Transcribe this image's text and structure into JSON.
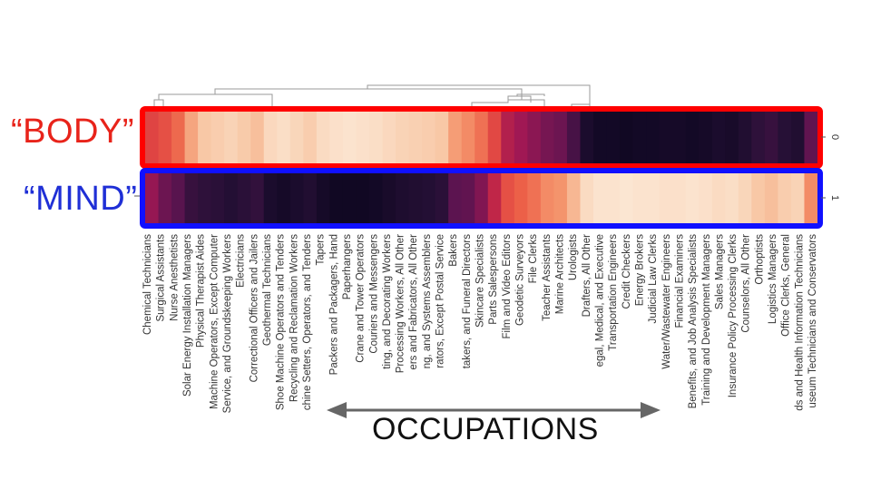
{
  "labels": {
    "body": "“BODY”",
    "mind": "“MIND”",
    "xaxis": "OCCUPATIONS"
  },
  "colors": {
    "body_box": "#ff0000",
    "mind_box": "#1010ff",
    "arrow": "#666666"
  },
  "chart_data": {
    "type": "heatmap",
    "colormap": "rocket (0 = dark purple-black, 1 = light cream)",
    "row_labels": [
      "0",
      "1"
    ],
    "row_names": [
      "“BODY”",
      "“MIND”"
    ],
    "x_tick_labels": [
      "Chemical Technicians",
      "Surgical Assistants",
      "Nurse Anesthetists",
      "Solar Energy Installation Managers",
      "Physical Therapist Aides",
      "Machine Operators, Except Computer",
      "Service, and Groundskeeping Workers",
      "Electricians",
      "Correctional Officers and Jailers",
      "Geothermal Technicians",
      "Shoe Machine Operators and Tenders",
      "Recycling and Reclamation Workers",
      "chine Setters, Operators, and Tenders",
      "Tapers",
      "Packers and Packagers, Hand",
      "Paperhangers",
      "Crane and Tower Operators",
      "Couriers and Messengers",
      "ting, and Decorating Workers",
      "Processing Workers, All Other",
      "ers and Fabricators, All Other",
      "ng, and Systems Assemblers",
      "rators, Except Postal Service",
      "Bakers",
      "takers, and Funeral Directors",
      "Skincare Specialists",
      "Parts Salespersons",
      "Film and Video Editors",
      "Geodetic Surveyors",
      "File Clerks",
      "Teacher Assistants",
      "Marine Architects",
      "Urologists",
      "Drafters, All Other",
      "egal, Medical, and Executive",
      "Transportation Engineers",
      "Credit Checkers",
      "Energy Brokers",
      "Judicial Law Clerks",
      "Water/Wastewater Engineers",
      "Financial Examiners",
      "Benefits, and Job Analysis Specialists",
      "Training and Development Managers",
      "Sales Managers",
      "Insurance Policy Processing Clerks",
      "Counselors, All Other",
      "Orthoptists",
      "Logistics Managers",
      "Office Clerks, General",
      "ds and Health Information Technicians",
      "useum Technicians and Conservators"
    ],
    "body_values": [
      0.55,
      0.58,
      0.64,
      0.78,
      0.86,
      0.88,
      0.9,
      0.87,
      0.84,
      0.92,
      0.94,
      0.91,
      0.88,
      0.93,
      0.95,
      0.96,
      0.95,
      0.94,
      0.92,
      0.9,
      0.89,
      0.88,
      0.86,
      0.76,
      0.72,
      0.66,
      0.56,
      0.42,
      0.38,
      0.34,
      0.3,
      0.28,
      0.2,
      0.08,
      0.05,
      0.05,
      0.04,
      0.05,
      0.05,
      0.06,
      0.06,
      0.05,
      0.06,
      0.08,
      0.07,
      0.1,
      0.14,
      0.16,
      0.12,
      0.1,
      0.26
    ],
    "mind_values": [
      0.36,
      0.28,
      0.24,
      0.16,
      0.14,
      0.13,
      0.11,
      0.13,
      0.15,
      0.08,
      0.06,
      0.08,
      0.1,
      0.06,
      0.04,
      0.04,
      0.04,
      0.05,
      0.07,
      0.09,
      0.1,
      0.11,
      0.13,
      0.25,
      0.26,
      0.32,
      0.45,
      0.58,
      0.62,
      0.66,
      0.72,
      0.74,
      0.82,
      0.93,
      0.96,
      0.96,
      0.97,
      0.96,
      0.96,
      0.95,
      0.95,
      0.96,
      0.95,
      0.93,
      0.94,
      0.91,
      0.86,
      0.84,
      0.88,
      0.9,
      0.72
    ]
  }
}
